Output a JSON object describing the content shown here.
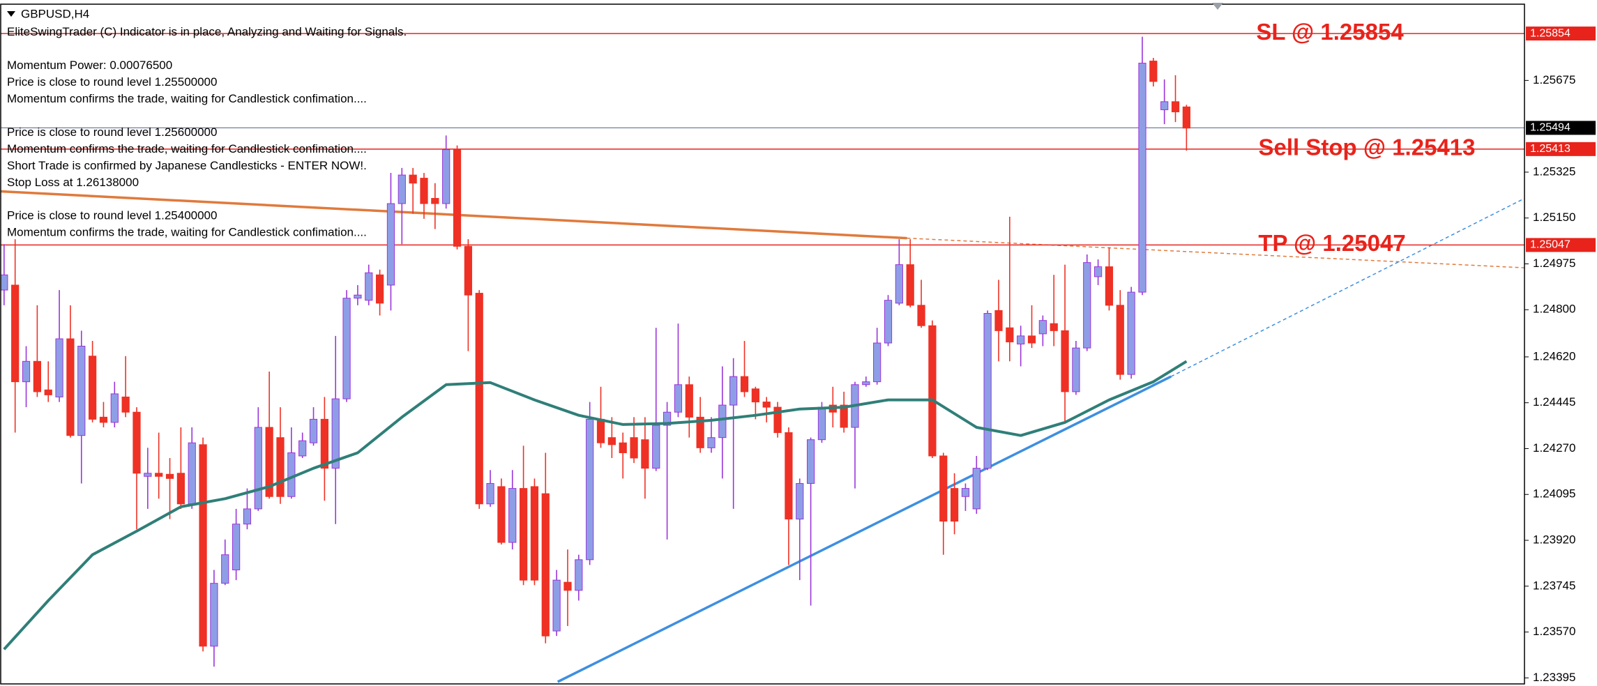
{
  "chart_data": {
    "type": "candlestick",
    "title": "GBPUSD,H4",
    "indicator_messages": [
      [
        "EliteSwingTrader (C) Indicator is in place, Analyzing and Waiting for Signals."
      ],
      [
        "Momentum Power: 0.00076500",
        "Price is close to round level 1.25500000",
        "Momentum confirms the trade, waiting for Candlestick confimation...."
      ],
      [
        "Price is close to round level 1.25600000",
        "Momentum confirms the trade, waiting for Candlestick confimation....",
        "Short Trade is confirmed by Japanese Candlesticks - ENTER NOW!.",
        "Stop Loss at 1.26138000"
      ],
      [
        "Price is close to round level 1.25400000",
        "Momentum confirms the trade, waiting for Candlestick confimation...."
      ]
    ],
    "open": [
      1.24875,
      1.24894,
      1.24525,
      1.24603,
      1.24494,
      1.24467,
      1.24689,
      1.2432,
      1.24623,
      1.2439,
      1.2437,
      1.24467,
      1.24409,
      1.24164,
      1.24176,
      1.24172,
      1.24176,
      1.24059,
      1.24285,
      1.23516,
      1.23756,
      1.23807,
      1.23982,
      1.2404,
      1.24351,
      1.24312,
      1.24087,
      1.24242,
      1.24292,
      1.24382,
      1.24195,
      1.2446,
      1.24844,
      1.24836,
      1.24933,
      1.24894,
      1.25205,
      1.25314,
      1.25302,
      1.25225,
      1.25205,
      1.25411,
      1.25042,
      1.24863,
      1.24059,
      1.24125,
      1.23912,
      1.24118,
      1.24125,
      1.24098,
      1.23574,
      1.2376,
      1.23729,
      1.23846,
      1.24382,
      1.24312,
      1.24292,
      1.24312,
      1.24304,
      1.24195,
      1.24359,
      1.24409,
      1.24514,
      1.2439,
      1.24273,
      1.24312,
      1.24436,
      1.24545,
      1.24498,
      1.24448,
      1.24428,
      1.24331,
      1.24001,
      1.24137,
      1.24304,
      1.24436,
      1.24436,
      1.24351,
      1.24514,
      1.24525,
      1.24673,
      1.24825,
      1.24972,
      1.24817,
      1.24739,
      1.24242,
      1.24118,
      1.24087,
      1.2404,
      1.24195,
      1.24797,
      1.24731,
      1.24669,
      1.247,
      1.24708,
      1.24747,
      1.2472,
      1.24487,
      1.24654,
      1.24926,
      1.24964,
      1.24817,
      1.24553,
      1.24867,
      1.25749,
      1.25563,
      1.25594,
      1.25574
    ],
    "high": [
      1.2505,
      1.25069,
      1.24661,
      1.24817,
      1.24603,
      1.24875,
      1.24817,
      1.2472,
      1.24681,
      1.24448,
      1.24525,
      1.24623,
      1.24428,
      1.24273,
      1.24331,
      1.24234,
      1.24351,
      1.24351,
      1.24312,
      1.23807,
      1.23923,
      1.2404,
      1.24118,
      1.24428,
      1.24564,
      1.24428,
      1.24351,
      1.24331,
      1.24428,
      1.24467,
      1.247,
      1.24875,
      1.24894,
      1.24972,
      1.24953,
      1.25322,
      1.25341,
      1.25341,
      1.25322,
      1.25283,
      1.25465,
      1.25427,
      1.25069,
      1.24875,
      1.24188,
      1.24156,
      1.24188,
      1.24281,
      1.24156,
      1.24254,
      1.23807,
      1.23885,
      1.23865,
      1.24448,
      1.24506,
      1.2439,
      1.24331,
      1.2439,
      1.2439,
      1.24731,
      1.24448,
      1.24747,
      1.24545,
      1.24467,
      1.2439,
      1.24584,
      1.24615,
      1.24681,
      1.24506,
      1.24467,
      1.24448,
      1.24351,
      1.24156,
      1.24312,
      1.24448,
      1.24506,
      1.24487,
      1.24525,
      1.24545,
      1.24731,
      1.24856,
      1.25069,
      1.25069,
      1.24914,
      1.24759,
      1.24254,
      1.24176,
      1.24137,
      1.24242,
      1.24797,
      1.24914,
      1.25155,
      1.24739,
      1.24817,
      1.24778,
      1.24933,
      1.24972,
      1.24681,
      1.25011,
      1.24992,
      1.25038,
      1.24875,
      1.24887,
      1.25842,
      1.25761,
      1.25679,
      1.25695,
      1.25582
    ],
    "low": [
      1.24817,
      1.24331,
      1.24428,
      1.24467,
      1.24448,
      1.24448,
      1.24312,
      1.24137,
      1.2437,
      1.24351,
      1.24351,
      1.2439,
      1.23962,
      1.2404,
      1.24079,
      1.24001,
      1.2404,
      1.2404,
      1.23496,
      1.23438,
      1.23749,
      1.23768,
      1.23962,
      1.24032,
      1.24079,
      1.24059,
      1.24079,
      1.24234,
      1.24281,
      1.24071,
      1.23982,
      1.24448,
      1.24817,
      1.24817,
      1.24778,
      1.24797,
      1.2505,
      1.25166,
      1.25147,
      1.25108,
      1.25186,
      1.2503,
      1.24642,
      1.2404,
      1.24048,
      1.23904,
      1.23885,
      1.23749,
      1.23749,
      1.23527,
      1.23555,
      1.23593,
      1.2369,
      1.23826,
      1.24273,
      1.24234,
      1.24156,
      1.24215,
      1.24079,
      1.24184,
      1.23923,
      1.2439,
      1.24312,
      1.24254,
      1.24254,
      1.24156,
      1.2404,
      1.24467,
      1.24382,
      1.2437,
      1.24312,
      1.23826,
      1.23768,
      1.23671,
      1.24292,
      1.24351,
      1.24331,
      1.24118,
      1.24506,
      1.24514,
      1.24661,
      1.24817,
      1.24809,
      1.24731,
      1.24234,
      1.23865,
      1.23943,
      1.24032,
      1.24021,
      1.24188,
      1.24603,
      1.24603,
      1.24584,
      1.24654,
      1.24661,
      1.24661,
      1.2437,
      1.24475,
      1.24642,
      1.24894,
      1.24797,
      1.24533,
      1.24537,
      1.24856,
      1.25652,
      1.25508,
      1.25516,
      1.25407
    ],
    "close": [
      1.24933,
      1.24525,
      1.24603,
      1.24487,
      1.24475,
      1.24689,
      1.2432,
      1.24661,
      1.24382,
      1.2437,
      1.24479,
      1.24409,
      1.24176,
      1.24176,
      1.24164,
      1.24156,
      1.24059,
      1.24292,
      1.23516,
      1.23756,
      1.23865,
      1.23982,
      1.2404,
      1.24351,
      1.24087,
      1.24087,
      1.24254,
      1.243,
      1.24382,
      1.24195,
      1.2446,
      1.24844,
      1.24856,
      1.24941,
      1.24825,
      1.25205,
      1.25314,
      1.25283,
      1.25205,
      1.25205,
      1.25411,
      1.25042,
      1.24856,
      1.24059,
      1.24137,
      1.23912,
      1.24118,
      1.23768,
      1.23768,
      1.23555,
      1.23768,
      1.23729,
      1.23846,
      1.24382,
      1.24292,
      1.24285,
      1.24254,
      1.24234,
      1.24195,
      1.24359,
      1.24409,
      1.24514,
      1.2439,
      1.24273,
      1.24312,
      1.24436,
      1.24545,
      1.24487,
      1.24448,
      1.24428,
      1.24331,
      1.24001,
      1.24137,
      1.24304,
      1.24428,
      1.24409,
      1.24351,
      1.24514,
      1.24525,
      1.24673,
      1.24836,
      1.24972,
      1.24817,
      1.24739,
      1.24242,
      1.23993,
      1.23993,
      1.24118,
      1.24195,
      1.24786,
      1.2472,
      1.24677,
      1.247,
      1.24673,
      1.24759,
      1.2472,
      1.24487,
      1.24654,
      1.2498,
      1.24964,
      1.24817,
      1.24553,
      1.24867,
      1.25741,
      1.25671,
      1.25594,
      1.25555,
      1.25493
    ],
    "up_color": "#8e9ee6",
    "up_border": "#9b35d8",
    "down_color": "#ee3124",
    "series": [
      {
        "color": "#2f7f78",
        "x": [
          0,
          4,
          8,
          12,
          16,
          20,
          24,
          28,
          32,
          36,
          40,
          44,
          48,
          52,
          56,
          60,
          64,
          68,
          72,
          76,
          80,
          84,
          88,
          92,
          96,
          100,
          104,
          107
        ],
        "values": [
          1.23504,
          1.2369,
          1.23865,
          1.23955,
          1.24048,
          1.24079,
          1.24125,
          1.24195,
          1.24254,
          1.2439,
          1.24514,
          1.24522,
          1.24456,
          1.24397,
          1.24362,
          1.24366,
          1.24378,
          1.24397,
          1.24421,
          1.24428,
          1.24456,
          1.24456,
          1.24351,
          1.2432,
          1.2437,
          1.24456,
          1.24525,
          1.24603
        ]
      }
    ],
    "trendlines": [
      {
        "color": "#e07a3c",
        "dashed": false,
        "x": [
          -0.4,
          81.7
        ],
        "values": [
          1.25252,
          1.25073
        ]
      },
      {
        "color": "#e07a3c",
        "dashed": true,
        "x": [
          81.7,
          137.6
        ],
        "values": [
          1.25073,
          1.2496
        ]
      },
      {
        "color": "#3d8fe0",
        "dashed": false,
        "x": [
          50.1,
          105.6
        ],
        "values": [
          1.2338,
          1.24545
        ]
      },
      {
        "color": "#3d8fe0",
        "dashed": true,
        "x": [
          105.6,
          137.6
        ],
        "values": [
          1.24545,
          1.25225
        ]
      }
    ],
    "levels": [
      {
        "label": "SL @ 1.25854",
        "value": 1.25854,
        "color": "#e8231b"
      },
      {
        "label": "Sell Stop @ 1.25413",
        "value": 1.25413,
        "color": "#e8231b"
      },
      {
        "label": "TP @ 1.25047",
        "value": 1.25047,
        "color": "#e8231b"
      }
    ],
    "current_price": 1.25494,
    "current_price_color": "#6f7fa0",
    "ylim": [
      1.23372,
      1.25966
    ],
    "yticks": [
      1.25675,
      1.25325,
      {
        "value": 1.2515,
        "label": "1.25150"
      },
      1.24975,
      {
        "value": 1.248,
        "label": "1.24800"
      },
      {
        "value": 1.2462,
        "label": "1.24620"
      },
      1.24445,
      {
        "value": 1.2427,
        "label": "1.24270"
      },
      1.24095,
      {
        "value": 1.2392,
        "label": "1.23920"
      },
      1.23745,
      {
        "value": 1.2357,
        "label": "1.23570"
      },
      1.23395
    ]
  }
}
